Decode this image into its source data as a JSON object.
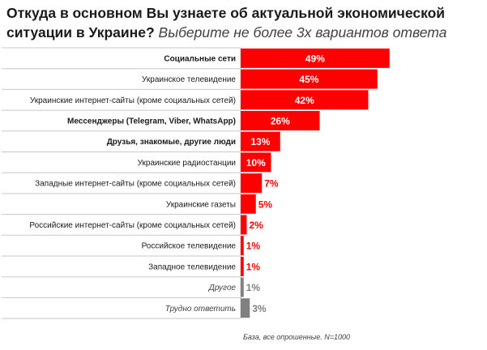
{
  "title": {
    "question": "Откуда в основном Вы узнаете об актуальной экономической ситуации в Украине?",
    "instruction": "Выберите не более 3х вариантов ответа"
  },
  "footnote": "База, все опрошенные. N=1000",
  "colors": {
    "main": "#ff0000",
    "other": "#808080",
    "grid": "#c8c8c8"
  },
  "chart_data": {
    "type": "bar",
    "orientation": "horizontal",
    "categories": [
      "Социальные сети",
      "Украинское телевидение",
      "Украинские интернет-сайты (кроме социальных сетей)",
      "Мессенджеры (Telegram, Viber, WhatsApp)",
      "Друзья, знакомые, другие люди",
      "Украинские радиостанции",
      "Западные интернет-сайты (кроме социальных сетей)",
      "Украинские газеты",
      "Российские интернет-сайты (кроме социальных сетей)",
      "Российское телевидение",
      "Западное телевидение",
      "Другое",
      "Трудно ответить"
    ],
    "values": [
      49,
      45,
      42,
      26,
      13,
      10,
      7,
      5,
      2,
      1,
      1,
      1,
      3
    ],
    "value_labels": [
      "49%",
      "45%",
      "42%",
      "26%",
      "13%",
      "10%",
      "7%",
      "5%",
      "2%",
      "1%",
      "1%",
      "1%",
      "3%"
    ],
    "bold_categories": [
      0,
      3,
      4
    ],
    "italic_categories": [
      11,
      12
    ],
    "gray_categories": [
      11,
      12
    ],
    "xlim": [
      0,
      50
    ],
    "grid": true
  }
}
